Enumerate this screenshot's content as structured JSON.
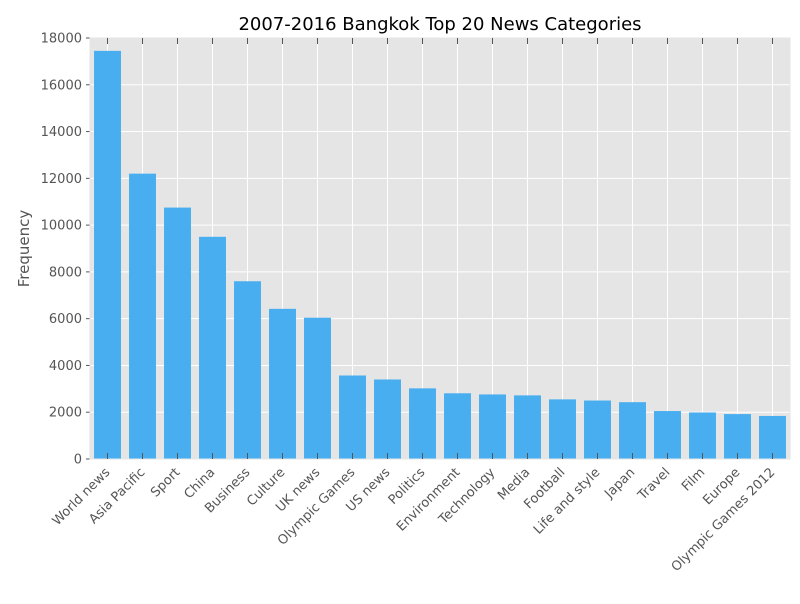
{
  "chart_data": {
    "type": "bar",
    "title": "2007-2016 Bangkok Top 20 News Categories",
    "xlabel": "",
    "ylabel": "Frequency",
    "ylim": [
      0,
      18000
    ],
    "yticks": [
      0,
      2000,
      4000,
      6000,
      8000,
      10000,
      12000,
      14000,
      16000,
      18000
    ],
    "grid": true,
    "categories": [
      "World news",
      "Asia Pacific",
      "Sport",
      "China",
      "Business",
      "Culture",
      "UK news",
      "Olympic Games",
      "US news",
      "Politics",
      "Environment",
      "Technology",
      "Media",
      "Football",
      "Life and style",
      "Japan",
      "Travel",
      "Film",
      "Europe",
      "Olympic Games 2012"
    ],
    "values": [
      17450,
      12200,
      10750,
      9500,
      7600,
      6420,
      6040,
      3570,
      3400,
      3020,
      2810,
      2760,
      2720,
      2550,
      2500,
      2430,
      2050,
      1990,
      1920,
      1840
    ],
    "colors": {
      "bar": "#48AEF0",
      "plot_background": "#E5E5E5",
      "grid": "#FFFFFF",
      "text": "#555555",
      "title": "#000000"
    }
  }
}
